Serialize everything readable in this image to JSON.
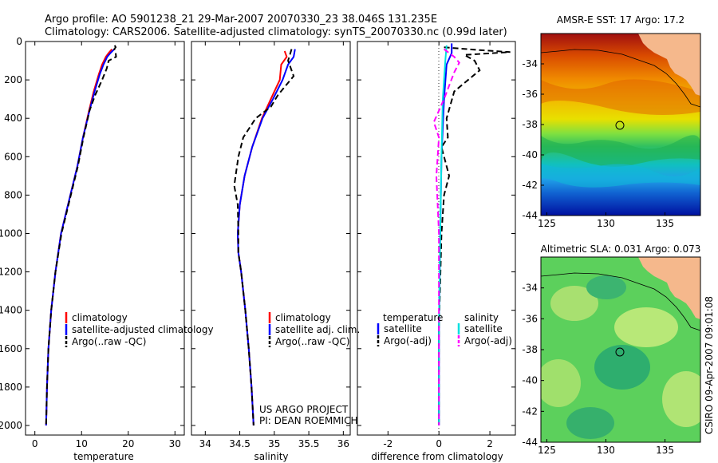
{
  "title": {
    "line1": "Argo profile: AO 5901238_21 29-Mar-2007 20070330_23 38.046S 131.235E",
    "line2": "Climatology: CARS2006. Satellite-adjusted climatology: synTS_20070330.nc (0.99d later)"
  },
  "colors": {
    "climatology": "#ff0000",
    "satellite": "#0000ff",
    "argo": "#000000",
    "salinity_sat": "#00e0e0",
    "salinity_argo": "#ff00ff"
  },
  "chart_data": [
    {
      "type": "line",
      "id": "temperature",
      "xlabel": "temperature",
      "xlim": [
        -2,
        32
      ],
      "ylim": [
        2050,
        0
      ],
      "xticks": [
        0,
        10,
        20,
        30
      ],
      "yticks": [
        0,
        200,
        400,
        600,
        800,
        1000,
        1200,
        1400,
        1600,
        1800,
        2000
      ],
      "legend": [
        "climatology",
        "satellite-adjusted climatology",
        "Argo(..raw -QC)"
      ],
      "series": [
        {
          "name": "climatology",
          "style": "solid",
          "color": "#ff0000",
          "points": [
            [
              16.5,
              40
            ],
            [
              15.8,
              60
            ],
            [
              15.2,
              80
            ],
            [
              14.4,
              120
            ],
            [
              13.7,
              170
            ],
            [
              12.6,
              260
            ],
            [
              11.6,
              360
            ],
            [
              10.3,
              500
            ],
            [
              9.1,
              650
            ],
            [
              7.6,
              800
            ],
            [
              5.6,
              1000
            ],
            [
              4.4,
              1200
            ],
            [
              3.5,
              1400
            ],
            [
              2.9,
              1600
            ],
            [
              2.6,
              1800
            ],
            [
              2.4,
              2000
            ]
          ]
        },
        {
          "name": "satellite-adjusted climatology",
          "style": "solid",
          "color": "#0000ff",
          "points": [
            [
              17.0,
              40
            ],
            [
              16.2,
              60
            ],
            [
              15.5,
              80
            ],
            [
              14.7,
              120
            ],
            [
              13.9,
              170
            ],
            [
              12.8,
              260
            ],
            [
              11.7,
              360
            ],
            [
              10.3,
              500
            ],
            [
              9.1,
              650
            ],
            [
              7.6,
              800
            ],
            [
              5.6,
              1000
            ],
            [
              4.4,
              1200
            ],
            [
              3.5,
              1400
            ],
            [
              2.9,
              1600
            ],
            [
              2.6,
              1800
            ],
            [
              2.4,
              2000
            ]
          ]
        },
        {
          "name": "Argo(..raw -QC)",
          "style": "dashed",
          "color": "#000000",
          "points": [
            [
              17.1,
              20
            ],
            [
              17.3,
              30
            ],
            [
              17.0,
              40
            ],
            [
              17.3,
              60
            ],
            [
              17.4,
              80
            ],
            [
              15.8,
              100
            ],
            [
              15.4,
              140
            ],
            [
              14.4,
              200
            ],
            [
              12.9,
              280
            ],
            [
              11.7,
              360
            ],
            [
              10.4,
              500
            ],
            [
              9.2,
              650
            ],
            [
              7.7,
              800
            ],
            [
              5.7,
              1000
            ],
            [
              4.4,
              1200
            ],
            [
              3.5,
              1400
            ],
            [
              2.9,
              1600
            ],
            [
              2.6,
              1800
            ],
            [
              2.4,
              2000
            ]
          ]
        }
      ]
    },
    {
      "type": "line",
      "id": "salinity",
      "xlabel": "salinity",
      "xlim": [
        33.8,
        36.1
      ],
      "ylim": [
        2050,
        0
      ],
      "xticks": [
        34,
        34.5,
        35,
        35.5,
        36
      ],
      "xticklabels": [
        "34",
        "34.5",
        "35",
        "35.5",
        "36"
      ],
      "legend": [
        "climatology",
        "satellite adj. clim.",
        "Argo(..raw -QC)"
      ],
      "series": [
        {
          "name": "climatology",
          "style": "solid",
          "color": "#ff0000",
          "points": [
            [
              35.15,
              50
            ],
            [
              35.18,
              80
            ],
            [
              35.1,
              120
            ],
            [
              35.08,
              200
            ],
            [
              34.95,
              300
            ],
            [
              34.82,
              400
            ],
            [
              34.68,
              550
            ],
            [
              34.57,
              700
            ],
            [
              34.5,
              850
            ],
            [
              34.47,
              1000
            ],
            [
              34.48,
              1100
            ],
            [
              34.52,
              1200
            ],
            [
              34.58,
              1400
            ],
            [
              34.63,
              1600
            ],
            [
              34.67,
              1800
            ],
            [
              34.7,
              2000
            ]
          ]
        },
        {
          "name": "satellite adj. clim.",
          "style": "solid",
          "color": "#0000ff",
          "points": [
            [
              35.3,
              40
            ],
            [
              35.28,
              80
            ],
            [
              35.2,
              120
            ],
            [
              35.12,
              200
            ],
            [
              34.98,
              300
            ],
            [
              34.83,
              400
            ],
            [
              34.68,
              550
            ],
            [
              34.57,
              700
            ],
            [
              34.5,
              850
            ],
            [
              34.47,
              1000
            ],
            [
              34.48,
              1100
            ],
            [
              34.52,
              1200
            ],
            [
              34.58,
              1400
            ],
            [
              34.63,
              1600
            ],
            [
              34.67,
              1800
            ],
            [
              34.7,
              2000
            ]
          ]
        },
        {
          "name": "Argo(..raw -QC)",
          "style": "dashed",
          "color": "#000000",
          "points": [
            [
              35.25,
              40
            ],
            [
              35.2,
              100
            ],
            [
              35.28,
              180
            ],
            [
              35.05,
              280
            ],
            [
              34.95,
              340
            ],
            [
              34.73,
              400
            ],
            [
              34.55,
              500
            ],
            [
              34.48,
              600
            ],
            [
              34.42,
              750
            ],
            [
              34.47,
              850
            ],
            [
              34.48,
              1000
            ],
            [
              34.48,
              1100
            ],
            [
              34.52,
              1200
            ],
            [
              34.58,
              1400
            ],
            [
              34.63,
              1600
            ],
            [
              34.67,
              1800
            ],
            [
              34.7,
              2000
            ]
          ]
        }
      ]
    },
    {
      "type": "line",
      "id": "difference",
      "xlabel": "difference from climatology",
      "xlim": [
        -3.2,
        3.0
      ],
      "ylim": [
        2050,
        0
      ],
      "xticks": [
        -2,
        0,
        2
      ],
      "legend_left": {
        "header": "temperature",
        "items": [
          "satellite",
          "Argo(-adj)"
        ]
      },
      "legend_right": {
        "header": "salinity",
        "items": [
          "satellite",
          "Argo(-adj)"
        ]
      },
      "series": [
        {
          "name": "temperature satellite",
          "style": "solid",
          "color": "#0000ff",
          "points": [
            [
              0.5,
              10
            ],
            [
              0.5,
              60
            ],
            [
              0.3,
              120
            ],
            [
              0.2,
              300
            ],
            [
              0.1,
              600
            ],
            [
              0.05,
              1000
            ],
            [
              0.0,
              1500
            ],
            [
              0.0,
              2000
            ]
          ]
        },
        {
          "name": "temperature Argo(-adj)",
          "style": "dashed",
          "color": "#000000",
          "points": [
            [
              0.2,
              30
            ],
            [
              1.6,
              45
            ],
            [
              2.8,
              55
            ],
            [
              1.0,
              70
            ],
            [
              1.4,
              100
            ],
            [
              1.6,
              150
            ],
            [
              0.6,
              260
            ],
            [
              0.3,
              400
            ],
            [
              0.35,
              500
            ],
            [
              0.1,
              550
            ],
            [
              0.4,
              700
            ],
            [
              0.2,
              800
            ],
            [
              0.1,
              1000
            ],
            [
              0.0,
              1500
            ],
            [
              0.0,
              2000
            ]
          ]
        },
        {
          "name": "salinity satellite",
          "style": "solid",
          "color": "#00e0e0",
          "points": [
            [
              0.3,
              20
            ],
            [
              0.25,
              100
            ],
            [
              0.15,
              300
            ],
            [
              0.1,
              600
            ],
            [
              0.05,
              1000
            ],
            [
              0.0,
              1500
            ],
            [
              0.0,
              2000
            ]
          ]
        },
        {
          "name": "salinity Argo(-adj)",
          "style": "dashed",
          "color": "#ff00ff",
          "points": [
            [
              0.2,
              40
            ],
            [
              0.6,
              80
            ],
            [
              0.8,
              110
            ],
            [
              0.6,
              160
            ],
            [
              0.2,
              300
            ],
            [
              -0.2,
              420
            ],
            [
              0.0,
              500
            ],
            [
              -0.1,
              700
            ],
            [
              0.0,
              1000
            ],
            [
              0.0,
              1500
            ],
            [
              0.0,
              2000
            ]
          ]
        }
      ],
      "annotation": [
        "US ARGO PROJECT",
        "PI: DEAN ROEMMICH"
      ]
    },
    {
      "type": "heatmap",
      "id": "sst_map",
      "title": "AMSR-E SST: 17 Argo: 17.2",
      "xlim": [
        124.5,
        138
      ],
      "ylim": [
        -44,
        -32
      ],
      "xticks": [
        125,
        130,
        135
      ],
      "yticks": [
        -44,
        -42,
        -40,
        -38,
        -36,
        -34
      ],
      "marker": [
        131.235,
        -38.046
      ]
    },
    {
      "type": "heatmap",
      "id": "sla_map",
      "title": "Altimetric SLA: 0.031 Argo: 0.073",
      "xlim": [
        124.5,
        138
      ],
      "ylim": [
        -44,
        -32
      ],
      "xticks": [
        125,
        130,
        135
      ],
      "yticks": [
        -44,
        -42,
        -40,
        -38,
        -36,
        -34
      ],
      "marker": [
        131.235,
        -38.046
      ]
    }
  ],
  "side_label": "CSIRO 09-Apr-2007 09:01:08"
}
